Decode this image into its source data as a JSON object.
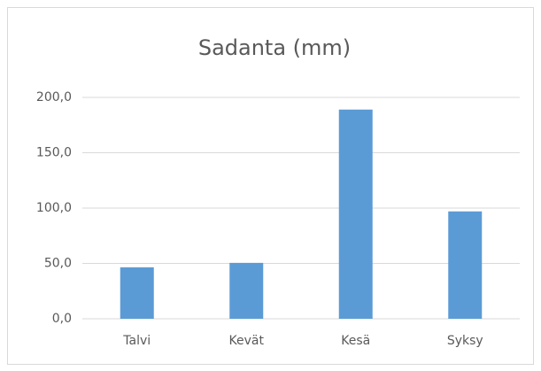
{
  "chart_data": {
    "type": "bar",
    "title": "Sadanta (mm)",
    "categories": [
      "Talvi",
      "Kevät",
      "Kesä",
      "Syksy"
    ],
    "values": [
      46.5,
      50.5,
      189,
      97
    ],
    "color": "#5b9bd5",
    "ylim": [
      0,
      200
    ],
    "yticks": [
      {
        "value": 0,
        "label": "0,0"
      },
      {
        "value": 50,
        "label": "50,0"
      },
      {
        "value": 100,
        "label": "100,0"
      },
      {
        "value": 150,
        "label": "150,0"
      },
      {
        "value": 200,
        "label": "200,0"
      }
    ],
    "grid": true
  }
}
